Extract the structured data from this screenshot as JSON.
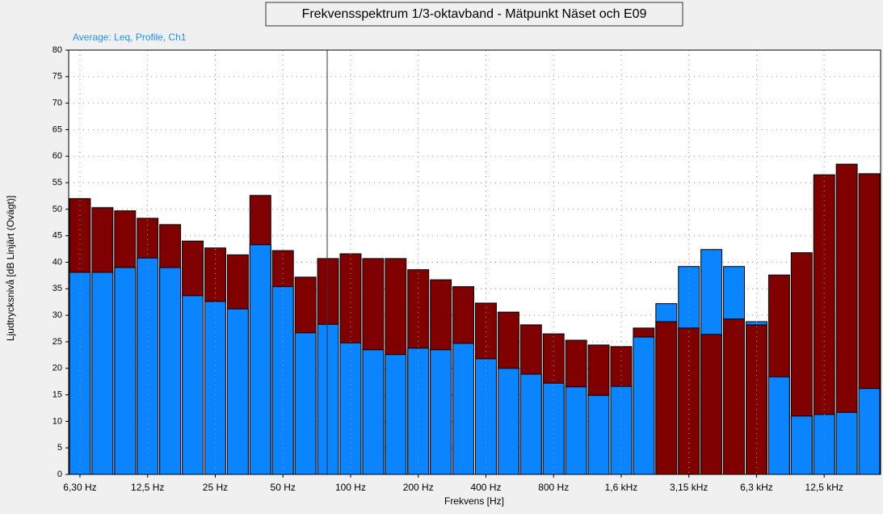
{
  "chart_data": {
    "type": "bar",
    "title": "Frekvensspektrum 1/3-oktavband - Mätpunkt Näset och E09",
    "subtitle": "Average: Leq, Profile, Ch1",
    "x_label": "Frekvens [Hz]",
    "y_label": "Ljudtrycksnivå [dB Linjärt (Ovägt)]",
    "categories": [
      "6,30 Hz",
      null,
      null,
      "12,5 Hz",
      null,
      null,
      "25 Hz",
      null,
      null,
      "50 Hz",
      null,
      null,
      "100 Hz",
      null,
      null,
      "200 Hz",
      null,
      null,
      "400 Hz",
      null,
      null,
      "800 Hz",
      null,
      null,
      "1,6 kHz",
      null,
      null,
      "3,15 kHz",
      null,
      null,
      "6,3 kHz",
      null,
      null,
      "12,5 kHz",
      null,
      null
    ],
    "series": [
      {
        "color": "#800000",
        "values": [
          52.0,
          50.3,
          49.7,
          48.3,
          47.1,
          44.0,
          42.7,
          41.4,
          52.6,
          42.2,
          37.2,
          40.7,
          41.6,
          40.7,
          40.7,
          38.6,
          36.7,
          35.4,
          32.3,
          30.6,
          28.2,
          26.5,
          25.3,
          24.4,
          24.1,
          27.6,
          28.8,
          27.6,
          26.4,
          29.3,
          28.2,
          37.6,
          41.8,
          56.5,
          58.5,
          56.7
        ]
      },
      {
        "color": "#0a84ff",
        "values": [
          38.1,
          38.1,
          39.0,
          40.8,
          39.0,
          33.7,
          32.6,
          31.2,
          43.3,
          35.4,
          26.7,
          28.3,
          24.8,
          23.5,
          22.6,
          23.8,
          23.5,
          24.7,
          21.8,
          20.0,
          18.9,
          17.2,
          16.5,
          14.9,
          16.6,
          25.9,
          32.2,
          39.2,
          42.4,
          39.2,
          28.8,
          18.4,
          11.0,
          11.3,
          11.7,
          16.2
        ]
      }
    ],
    "ylim": [
      0,
      80
    ],
    "yticks": [
      0,
      5,
      10,
      15,
      20,
      25,
      30,
      35,
      40,
      45,
      50,
      55,
      60,
      65,
      70,
      75,
      80
    ],
    "grid": true
  }
}
